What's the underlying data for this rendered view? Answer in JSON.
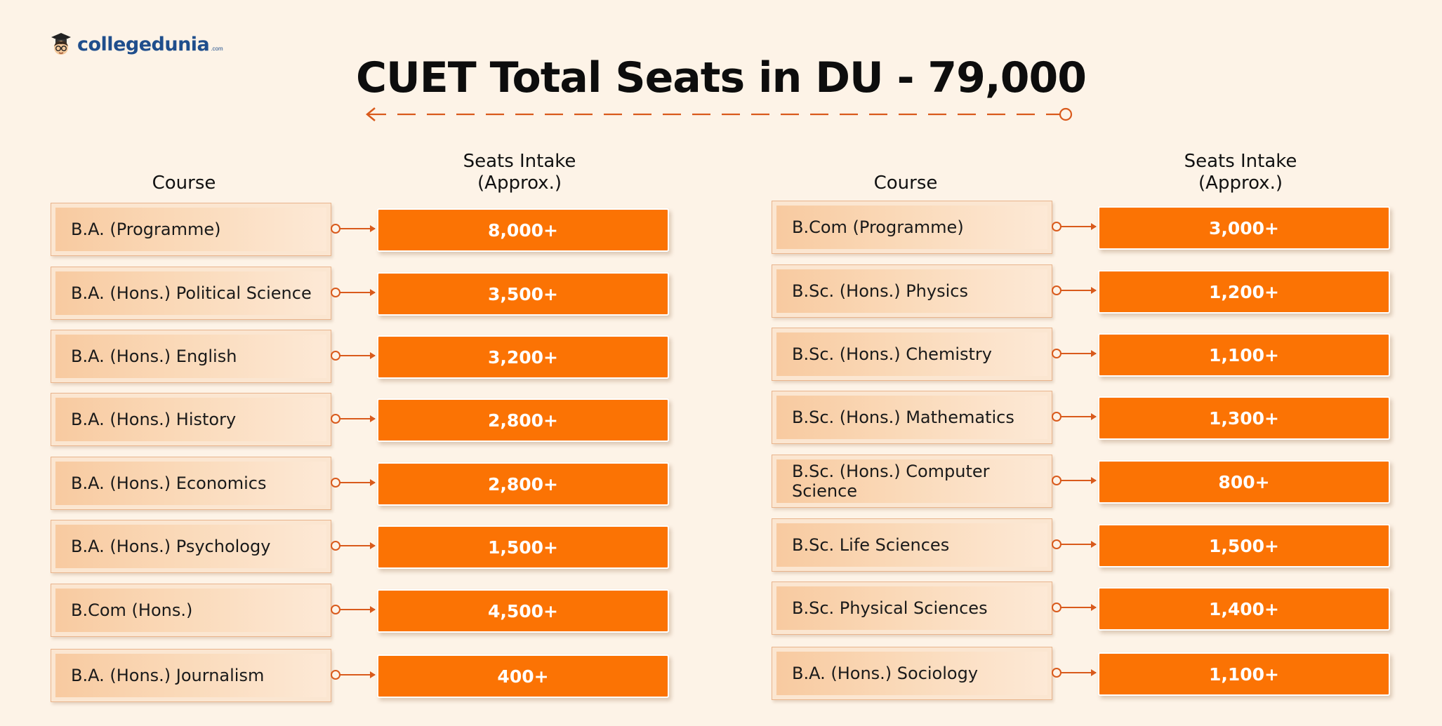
{
  "brand": {
    "name": "collegedunia",
    "suffix": ".com"
  },
  "title": "CUET Total Seats in DU - 79,000",
  "headers": {
    "course": "Course",
    "seats_line1": "Seats Intake",
    "seats_line2": "(Approx.)"
  },
  "colors": {
    "accent": "#fb7304",
    "background": "#fdf3e7",
    "brand_blue": "#1f4e8c",
    "rule": "#d95a1c"
  },
  "left_rows": [
    {
      "course": "B.A. (Programme)",
      "seats": "8,000+"
    },
    {
      "course": "B.A. (Hons.) Political Science",
      "seats": "3,500+"
    },
    {
      "course": "B.A. (Hons.) English",
      "seats": "3,200+"
    },
    {
      "course": "B.A. (Hons.) History",
      "seats": "2,800+"
    },
    {
      "course": "B.A. (Hons.) Economics",
      "seats": "2,800+"
    },
    {
      "course": "B.A. (Hons.) Psychology",
      "seats": "1,500+"
    },
    {
      "course": "B.Com (Hons.)",
      "seats": "4,500+"
    },
    {
      "course": "B.A. (Hons.) Journalism",
      "seats": "400+"
    }
  ],
  "right_rows": [
    {
      "course": "B.Com (Programme)",
      "seats": "3,000+"
    },
    {
      "course": "B.Sc. (Hons.) Physics",
      "seats": "1,200+"
    },
    {
      "course": "B.Sc. (Hons.) Chemistry",
      "seats": "1,100+"
    },
    {
      "course": "B.Sc. (Hons.) Mathematics",
      "seats": "1,300+"
    },
    {
      "course": "B.Sc. (Hons.) Computer Science",
      "seats": "800+"
    },
    {
      "course": "B.Sc. Life Sciences",
      "seats": "1,500+"
    },
    {
      "course": "B.Sc. Physical Sciences",
      "seats": "1,400+"
    },
    {
      "course": "B.A. (Hons.) Sociology",
      "seats": "1,100+"
    }
  ],
  "icons": {
    "logo": "student-mascot-icon",
    "connector": "arrow-connector-icon"
  }
}
